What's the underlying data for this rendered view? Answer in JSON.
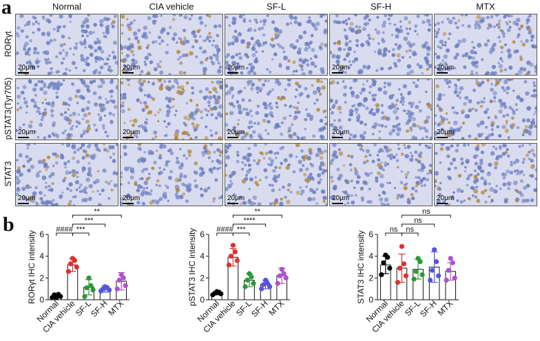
{
  "panel_labels": {
    "a": "a",
    "b": "b"
  },
  "micrograph_grid": {
    "columns": [
      "Normal",
      "CIA vehicle",
      "SF-L",
      "SF-H",
      "MTX"
    ],
    "rows": [
      "RORγt",
      "pSTAT3(Tyr705)",
      "STAT3"
    ],
    "scale_bar_label": "20μm",
    "stain_intensity": [
      [
        0.05,
        0.45,
        0.12,
        0.12,
        0.18
      ],
      [
        0.15,
        0.65,
        0.25,
        0.15,
        0.35
      ],
      [
        0.35,
        0.25,
        0.4,
        0.35,
        0.3
      ]
    ],
    "colors": {
      "hematoxylin": "#6f7fc0",
      "background": "#d9dcef",
      "dab": "#b58a3f"
    }
  },
  "chart_data": [
    {
      "type": "bar",
      "ylabel": "RORγt IHC intensity",
      "categories": [
        "Normal",
        "CIA vehicle",
        "SF-L",
        "SF-H",
        "MTX"
      ],
      "values": [
        0.35,
        3.2,
        1.15,
        1.0,
        1.7
      ],
      "errors": [
        0.15,
        0.6,
        0.7,
        0.3,
        0.8
      ],
      "points": [
        [
          0.2,
          0.3,
          0.45,
          0.5,
          0.2
        ],
        [
          2.6,
          3.0,
          3.3,
          3.6,
          3.8
        ],
        [
          0.3,
          0.9,
          1.1,
          1.3,
          2.0
        ],
        [
          0.8,
          0.9,
          1.0,
          1.1,
          1.2
        ],
        [
          1.0,
          1.3,
          1.8,
          2.0,
          2.3
        ]
      ],
      "ylim": [
        0,
        6
      ],
      "yticks": [
        0,
        2,
        4,
        6
      ],
      "point_colors": [
        "#000000",
        "#e03030",
        "#2a9a35",
        "#5555dd",
        "#b050d0"
      ],
      "significance": [
        {
          "from": 0,
          "to": 1,
          "label": "####"
        },
        {
          "from": 1,
          "to": 2,
          "label": "***"
        },
        {
          "from": 1,
          "to": 3,
          "label": "***"
        },
        {
          "from": 1,
          "to": 4,
          "label": "**"
        }
      ]
    },
    {
      "type": "bar",
      "ylabel": "pSTAT3 IHC intensity",
      "categories": [
        "Normal",
        "CIA vehicle",
        "SF-L",
        "SF-H",
        "MTX"
      ],
      "values": [
        0.6,
        3.9,
        1.8,
        1.4,
        2.2
      ],
      "errors": [
        0.15,
        0.8,
        0.6,
        0.4,
        0.7
      ],
      "points": [
        [
          0.45,
          0.55,
          0.6,
          0.7,
          0.75
        ],
        [
          3.2,
          3.6,
          4.0,
          4.4,
          5.0
        ],
        [
          1.2,
          1.5,
          1.8,
          2.1,
          2.4
        ],
        [
          1.0,
          1.2,
          1.4,
          1.5,
          1.8
        ],
        [
          1.5,
          2.0,
          2.2,
          2.4,
          2.8
        ]
      ],
      "ylim": [
        0,
        6
      ],
      "yticks": [
        0,
        2,
        4,
        6
      ],
      "point_colors": [
        "#000000",
        "#e03030",
        "#2a9a35",
        "#5555dd",
        "#b050d0"
      ],
      "significance": [
        {
          "from": 0,
          "to": 1,
          "label": "####"
        },
        {
          "from": 1,
          "to": 2,
          "label": "***"
        },
        {
          "from": 1,
          "to": 3,
          "label": "****"
        },
        {
          "from": 1,
          "to": 4,
          "label": "**"
        }
      ]
    },
    {
      "type": "bar",
      "ylabel": "STAT3 IHC intensity",
      "categories": [
        "Normal",
        "CIA vehicle",
        "SF-L",
        "SF-H",
        "MTX"
      ],
      "values": [
        3.2,
        2.9,
        2.8,
        3.0,
        2.6
      ],
      "errors": [
        0.8,
        1.3,
        0.9,
        1.4,
        0.8
      ],
      "points": [
        [
          2.3,
          2.9,
          3.4,
          3.9,
          4.1
        ],
        [
          1.6,
          2.2,
          2.9,
          3.3,
          4.9
        ],
        [
          1.9,
          2.3,
          2.6,
          3.5,
          3.8
        ],
        [
          1.8,
          2.2,
          2.7,
          3.5,
          4.6
        ],
        [
          1.8,
          2.0,
          2.7,
          3.4,
          3.8
        ]
      ],
      "ylim": [
        0,
        6
      ],
      "yticks": [
        0,
        2,
        4,
        6
      ],
      "point_colors": [
        "#000000",
        "#e03030",
        "#2a9a35",
        "#5555dd",
        "#b050d0"
      ],
      "significance": [
        {
          "from": 0,
          "to": 1,
          "label": "ns"
        },
        {
          "from": 1,
          "to": 2,
          "label": "ns"
        },
        {
          "from": 1,
          "to": 3,
          "label": "ns"
        },
        {
          "from": 1,
          "to": 4,
          "label": "ns"
        }
      ]
    }
  ]
}
